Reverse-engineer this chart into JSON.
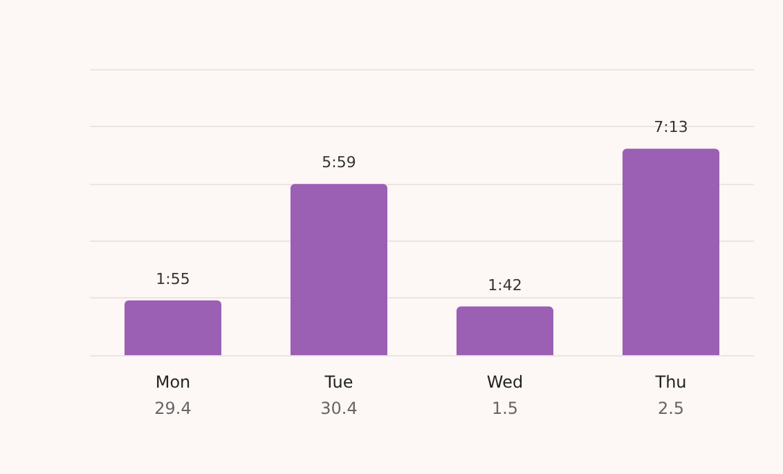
{
  "chart_data": {
    "type": "bar",
    "categories": [
      "Mon\n29.4",
      "Tue\n30.4",
      "Wed\n1.5",
      "Thu\n2.5"
    ],
    "values": [
      115,
      359,
      102,
      433
    ],
    "value_labels": [
      "1:55",
      "5:59",
      "1:42",
      "7:13"
    ],
    "color": "#9b5fb4",
    "ylim": [
      0,
      600
    ],
    "yticks": [
      {
        "value": 0,
        "label": null
      },
      {
        "value": 120,
        "label": null
      },
      {
        "value": 240,
        "label": null
      },
      {
        "value": 360,
        "label": null
      },
      {
        "value": 480,
        "label": null
      },
      {
        "value": 600,
        "label": null
      }
    ],
    "grid": "y",
    "tick_labels": "x"
  }
}
